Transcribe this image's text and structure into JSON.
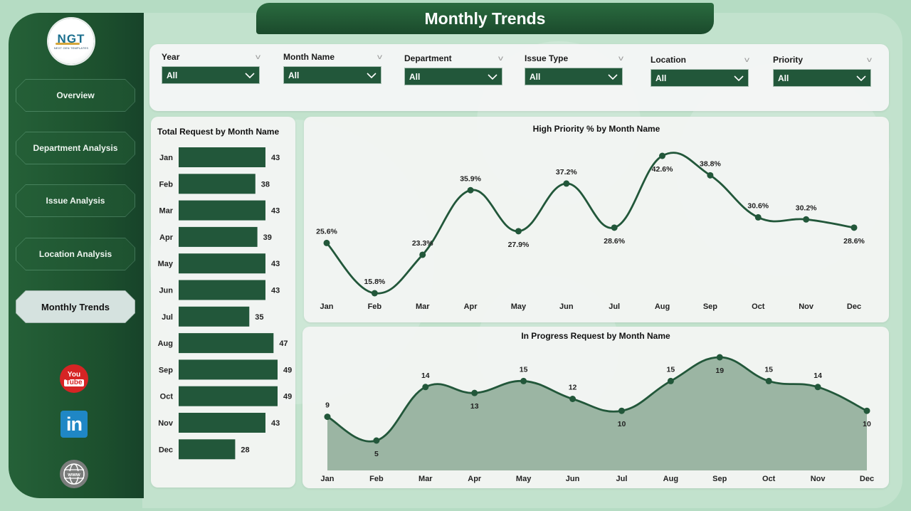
{
  "header": {
    "title": "Monthly Trends"
  },
  "logo": {
    "text": "NGT",
    "subtitle": "NEXT GEN TEMPLATES"
  },
  "sidebar": {
    "items": [
      {
        "label": "Overview",
        "active": false
      },
      {
        "label": "Department Analysis",
        "active": false
      },
      {
        "label": "Issue Analysis",
        "active": false
      },
      {
        "label": "Location Analysis",
        "active": false
      },
      {
        "label": "Monthly Trends",
        "active": true
      }
    ],
    "social": [
      {
        "name": "youtube-icon",
        "top": "You",
        "bottom": "Tube"
      },
      {
        "name": "linkedin-icon",
        "text": "in"
      },
      {
        "name": "website-icon",
        "text": "www"
      }
    ]
  },
  "filters": [
    {
      "label": "Year",
      "value": "All"
    },
    {
      "label": "Month Name",
      "value": "All"
    },
    {
      "label": "Department",
      "value": "All"
    },
    {
      "label": "Issue Type",
      "value": "All"
    },
    {
      "label": "Location",
      "value": "All"
    },
    {
      "label": "Priority",
      "value": "All"
    }
  ],
  "colors": {
    "primary": "#22573a",
    "line": "#22573a",
    "area": "#9bb5a3",
    "background": "#b5dcc3"
  },
  "chart_data": [
    {
      "id": "total-request",
      "type": "bar",
      "orientation": "horizontal",
      "title": "Total Request by Month Name",
      "categories": [
        "Jan",
        "Feb",
        "Mar",
        "Apr",
        "May",
        "Jun",
        "Jul",
        "Aug",
        "Sep",
        "Oct",
        "Nov",
        "Dec"
      ],
      "values": [
        43,
        38,
        43,
        39,
        43,
        43,
        35,
        47,
        49,
        49,
        43,
        28
      ],
      "xlim": [
        0,
        49
      ]
    },
    {
      "id": "high-priority",
      "type": "line",
      "title": "High Priority % by Month Name",
      "categories": [
        "Jan",
        "Feb",
        "Mar",
        "Apr",
        "May",
        "Jun",
        "Jul",
        "Aug",
        "Sep",
        "Oct",
        "Nov",
        "Dec"
      ],
      "values": [
        25.6,
        15.8,
        23.3,
        35.9,
        27.9,
        37.2,
        28.6,
        42.6,
        38.8,
        30.6,
        30.2,
        28.6
      ],
      "labels": [
        "25.6%",
        "15.8%",
        "23.3%",
        "35.9%",
        "27.9%",
        "37.2%",
        "28.6%",
        "42.6%",
        "38.8%",
        "30.6%",
        "30.2%",
        "28.6%"
      ],
      "ylim": [
        15.8,
        42.6
      ]
    },
    {
      "id": "in-progress",
      "type": "area",
      "title": "In Progress Request by Month Name",
      "categories": [
        "Jan",
        "Feb",
        "Mar",
        "Apr",
        "May",
        "Jun",
        "Jul",
        "Aug",
        "Sep",
        "Oct",
        "Nov",
        "Dec"
      ],
      "values": [
        9,
        5,
        14,
        13,
        15,
        12,
        10,
        15,
        19,
        15,
        14,
        10
      ],
      "ylim": [
        0,
        19
      ]
    }
  ]
}
